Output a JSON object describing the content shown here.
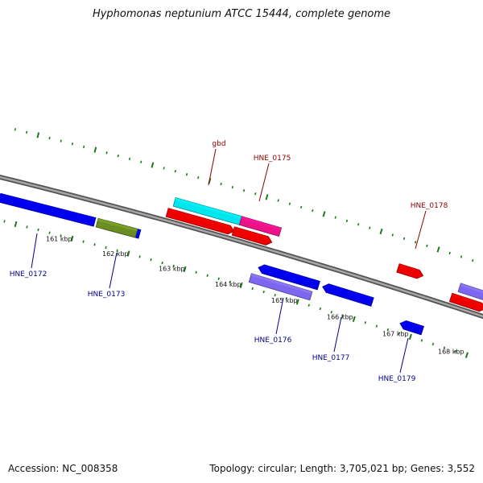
{
  "title": "Hyphomonas neptunium ATCC 15444, complete genome",
  "footer": {
    "accession": "Accession: NC_008358",
    "summary": "Topology: circular; Length: 3,705,021 bp; Genes: 3,552"
  },
  "ruler": [
    "161 kbp",
    "162 kbp",
    "163 kbp",
    "164 kbp",
    "165 kbp",
    "166 kbp",
    "167 kbp",
    "168 kbp"
  ],
  "genes": [
    {
      "name": "",
      "strand": "-",
      "start": 0,
      "end": 124,
      "color": "#0000ee"
    },
    {
      "name": "HNE_0172",
      "strand": "-",
      "start": 132,
      "end": 180,
      "color": "#0000ee",
      "label_color": "#00008b"
    },
    {
      "name": "HNE_0173",
      "strand": "-",
      "start": 127,
      "end": 176,
      "color": "#6b8e23",
      "label_color": "#00008b",
      "pointed": false
    },
    {
      "name": "gbd",
      "strand": "+",
      "start": 210,
      "end": 292,
      "color": "#00e5ee",
      "label_color": "#8b0000",
      "pointed": false
    },
    {
      "name": "",
      "strand": "+",
      "start": 205,
      "end": 288,
      "color": "#ee0000",
      "row": "+2"
    },
    {
      "name": "HNE_0175",
      "strand": "+",
      "start": 292,
      "end": 341,
      "color": "#ee1289",
      "label_color": "#8b0000",
      "pointed": false
    },
    {
      "name": "",
      "strand": "+",
      "start": 287,
      "end": 335,
      "color": "#ee0000",
      "row": "+2"
    },
    {
      "name": "",
      "strand": "-",
      "start": 328,
      "end": 403,
      "color": "#0000ee"
    },
    {
      "name": "HNE_0176",
      "strand": "-",
      "start": 322,
      "end": 398,
      "color": "#7b68ee",
      "label_color": "#00008b",
      "pointed": false,
      "row": "-2"
    },
    {
      "name": "HNE_0177",
      "strand": "-",
      "start": 408,
      "end": 470,
      "color": "#0000ee",
      "label_color": "#00008b"
    },
    {
      "name": "HNE_0178",
      "strand": "+",
      "start": 487,
      "end": 518,
      "color": "#ee0000",
      "label_color": "#8b0000"
    },
    {
      "name": "HNE_0179",
      "strand": "-",
      "start": 509,
      "end": 537,
      "color": "#0000ee",
      "label_color": "#00008b",
      "row": "-2"
    },
    {
      "name": "",
      "strand": "+",
      "start": 563,
      "end": 600,
      "color": "#7b68ee",
      "pointed": false
    },
    {
      "name": "",
      "strand": "+",
      "start": 557,
      "end": 600,
      "color": "#ee0000",
      "row": "+2"
    }
  ]
}
